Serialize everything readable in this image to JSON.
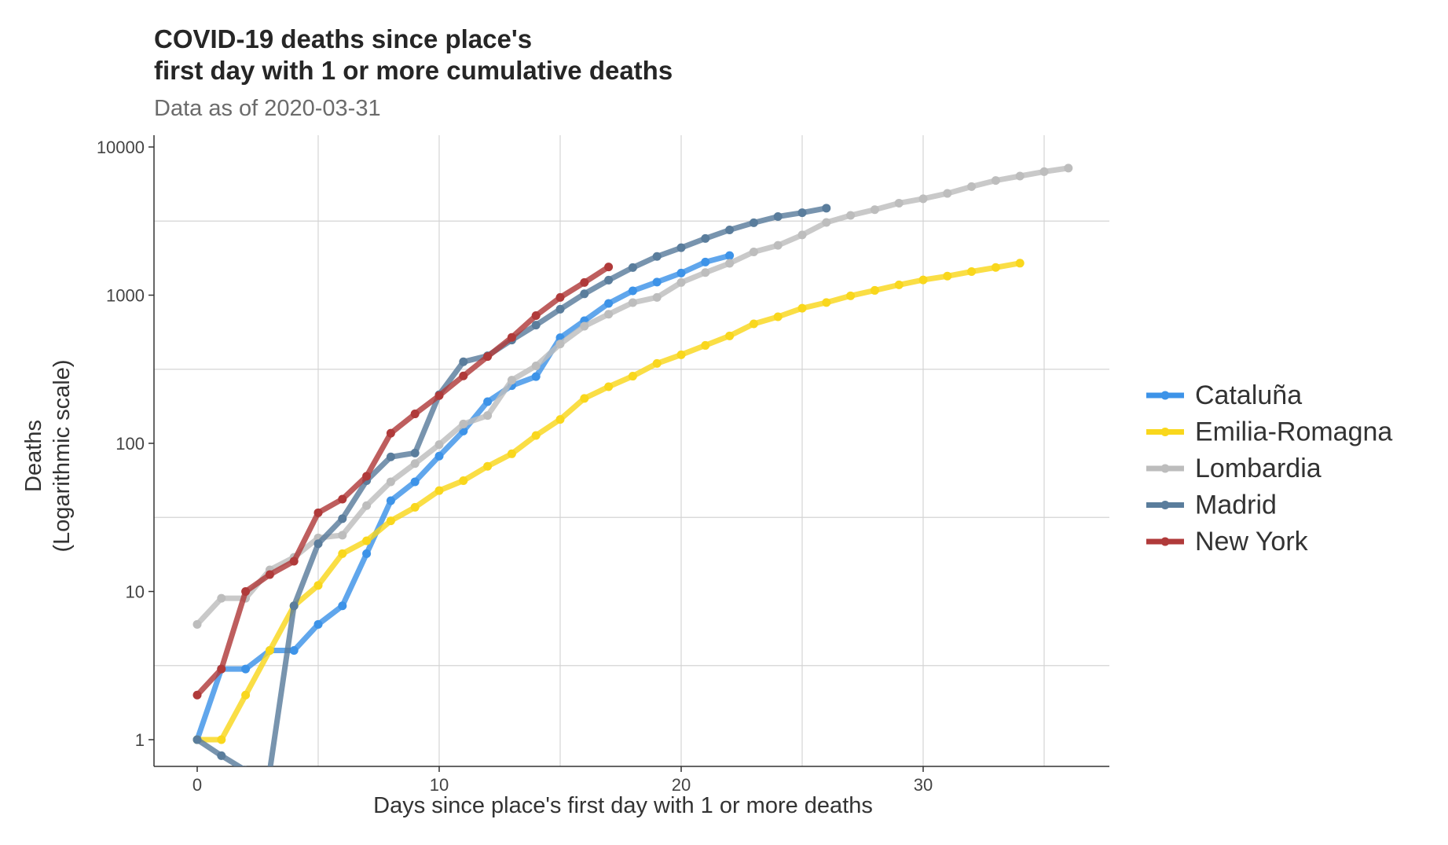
{
  "chart_data": {
    "type": "line",
    "title_line1": "COVID-19 deaths since place's",
    "title_line2": "first day with 1 or more cumulative deaths",
    "subtitle": "Data as of 2020-03-31",
    "xlabel": "Days since place's first day with 1 or more deaths",
    "ylabel_line1": "Deaths",
    "ylabel_line2": "(Logarithmic scale)",
    "y_scale": "log10",
    "xlim": [
      -1.8,
      37.8
    ],
    "ylim": [
      0.65,
      11000
    ],
    "x_ticks": [
      0,
      10,
      20,
      30
    ],
    "x_tick_labels": [
      "0",
      "10",
      "20",
      "30"
    ],
    "y_ticks": [
      1,
      10,
      100,
      1000,
      10000
    ],
    "y_tick_labels": [
      "1",
      "10",
      "100",
      "1000",
      "10000"
    ],
    "grid": true,
    "legend_position": "right",
    "series": [
      {
        "name": "Cataluña",
        "color": "#3d93e8",
        "x": [
          0,
          1,
          2,
          3,
          4,
          5,
          6,
          7,
          8,
          9,
          10,
          11,
          12,
          13,
          14,
          15,
          16,
          17,
          18,
          19,
          20,
          21,
          22
        ],
        "values": [
          1,
          3,
          3,
          4,
          4,
          6,
          8,
          18,
          41,
          55,
          82,
          121,
          191,
          245,
          282,
          516,
          672,
          880,
          1070,
          1226,
          1410,
          1672,
          1849
        ]
      },
      {
        "name": "Emilia-Romagna",
        "color": "#f9d71c",
        "x": [
          0,
          1,
          2,
          3,
          4,
          5,
          6,
          7,
          8,
          9,
          10,
          11,
          12,
          13,
          14,
          15,
          16,
          17,
          18,
          19,
          20,
          21,
          22,
          23,
          24,
          25,
          26,
          27,
          28,
          29,
          30,
          31,
          32,
          33,
          34
        ],
        "values": [
          1,
          1,
          2,
          4,
          8,
          11,
          18,
          22,
          30,
          37,
          48,
          56,
          70,
          85,
          113,
          145,
          201,
          241,
          284,
          346,
          396,
          458,
          531,
          640,
          715,
          816,
          892,
          990,
          1077,
          1174,
          1267,
          1344,
          1443,
          1538,
          1644
        ]
      },
      {
        "name": "Lombardia",
        "color": "#bdbdbd",
        "x": [
          0,
          1,
          2,
          3,
          4,
          5,
          6,
          7,
          8,
          9,
          10,
          11,
          12,
          13,
          14,
          15,
          16,
          17,
          18,
          19,
          20,
          21,
          22,
          23,
          24,
          25,
          26,
          27,
          28,
          29,
          30,
          31,
          32,
          33,
          34,
          35,
          36
        ],
        "values": [
          6,
          9,
          9,
          14,
          17,
          23,
          24,
          38,
          55,
          73,
          98,
          135,
          154,
          267,
          333,
          468,
          617,
          744,
          890,
          966,
          1218,
          1420,
          1640,
          1959,
          2168,
          2549,
          3095,
          3456,
          3776,
          4178,
          4474,
          4861,
          5402,
          5944,
          6360,
          6818,
          7199
        ]
      },
      {
        "name": "Madrid",
        "color": "#5a7d9c",
        "x": [
          0,
          1,
          2,
          3,
          4,
          5,
          6,
          7,
          8,
          9,
          10,
          11,
          12,
          13,
          14,
          15,
          16,
          17,
          18,
          19,
          20,
          21,
          22,
          23,
          24,
          25,
          26
        ],
        "values": [
          1,
          0.78,
          0.62,
          0.62,
          8,
          21,
          31,
          56,
          81,
          86,
          213,
          355,
          390,
          498,
          628,
          804,
          1021,
          1263,
          1535,
          1825,
          2090,
          2412,
          2757,
          3082,
          3392,
          3603,
          3865
        ]
      },
      {
        "name": "New York",
        "color": "#b03a3a",
        "x": [
          0,
          1,
          2,
          3,
          4,
          5,
          6,
          7,
          8,
          9,
          10,
          11,
          12,
          13,
          14,
          15,
          16,
          17
        ],
        "values": [
          2,
          3,
          10,
          13,
          16,
          34,
          42,
          60,
          117,
          158,
          210,
          285,
          385,
          519,
          728,
          965,
          1218,
          1550
        ]
      }
    ]
  }
}
